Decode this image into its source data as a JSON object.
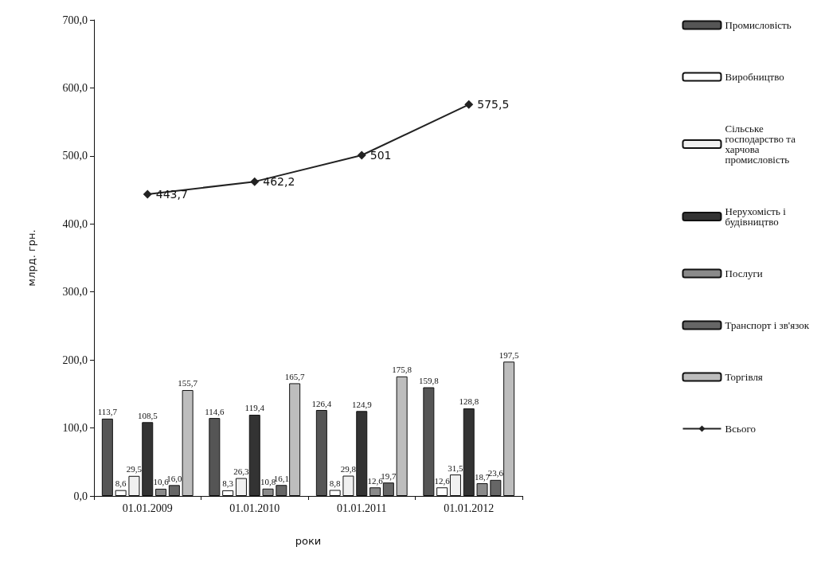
{
  "chart_data": {
    "type": "bar",
    "xlabel": "роки",
    "ylabel": "млрд. грн.",
    "categories": [
      "01.01.2009",
      "01.01.2010",
      "01.01.2011",
      "01.01.2012"
    ],
    "series": [
      {
        "name": "Промисловість",
        "color": "#555555",
        "values": [
          113.7,
          114.6,
          126.4,
          159.8
        ],
        "value_labels": [
          "113,7",
          "114,6",
          "126,4",
          "159,8"
        ]
      },
      {
        "name": "Виробництво",
        "color": "#ffffff",
        "values": [
          8.6,
          8.3,
          8.8,
          12.6
        ],
        "value_labels": [
          "8,6",
          "8,3",
          "8,8",
          "12,6"
        ]
      },
      {
        "name": "Сільське господарство та харчова промисловість",
        "color": "#f0f0f0",
        "values": [
          29.5,
          26.3,
          29.8,
          31.5
        ],
        "value_labels": [
          "29,5",
          "26,3",
          "29,8",
          "31,5"
        ]
      },
      {
        "name": "Нерухомість і будівництво",
        "color": "#333333",
        "values": [
          108.5,
          119.4,
          124.9,
          128.8
        ],
        "value_labels": [
          "108,5",
          "119,4",
          "124,9",
          "128,8"
        ]
      },
      {
        "name": "Послуги",
        "color": "#8a8a8a",
        "values": [
          10.6,
          10.8,
          12.6,
          18.7
        ],
        "value_labels": [
          "10,6",
          "10,8",
          "12,6",
          "18,7"
        ]
      },
      {
        "name": "Транспорт і зв'язок",
        "color": "#666666",
        "values": [
          16.0,
          16.1,
          19.7,
          23.6
        ],
        "value_labels": [
          "16,0",
          "16,1",
          "19,7",
          "23,6"
        ]
      },
      {
        "name": "Торгівля",
        "color": "#bdbdbd",
        "values": [
          155.7,
          165.7,
          175.8,
          197.5
        ],
        "value_labels": [
          "155,7",
          "165,7",
          "175,8",
          "197,5"
        ]
      },
      {
        "name": "Всього",
        "type": "line",
        "color": "#222222",
        "values": [
          443.7,
          462.2,
          501,
          575.5
        ],
        "value_labels": [
          "443,7",
          "462,2",
          "501",
          "575,5"
        ]
      }
    ],
    "ylim": [
      0,
      700
    ],
    "yticks": [
      {
        "value": 0,
        "label": "0,0"
      },
      {
        "value": 100,
        "label": "100,0"
      },
      {
        "value": 200,
        "label": "200,0"
      },
      {
        "value": 300,
        "label": "300,0"
      },
      {
        "value": 400,
        "label": "400,0"
      },
      {
        "value": 500,
        "label": "500,0"
      },
      {
        "value": 600,
        "label": "600,0"
      },
      {
        "value": 700,
        "label": "700,0"
      }
    ],
    "grid": false,
    "legend": "right",
    "marker": "diamond",
    "line_style": "solid"
  }
}
